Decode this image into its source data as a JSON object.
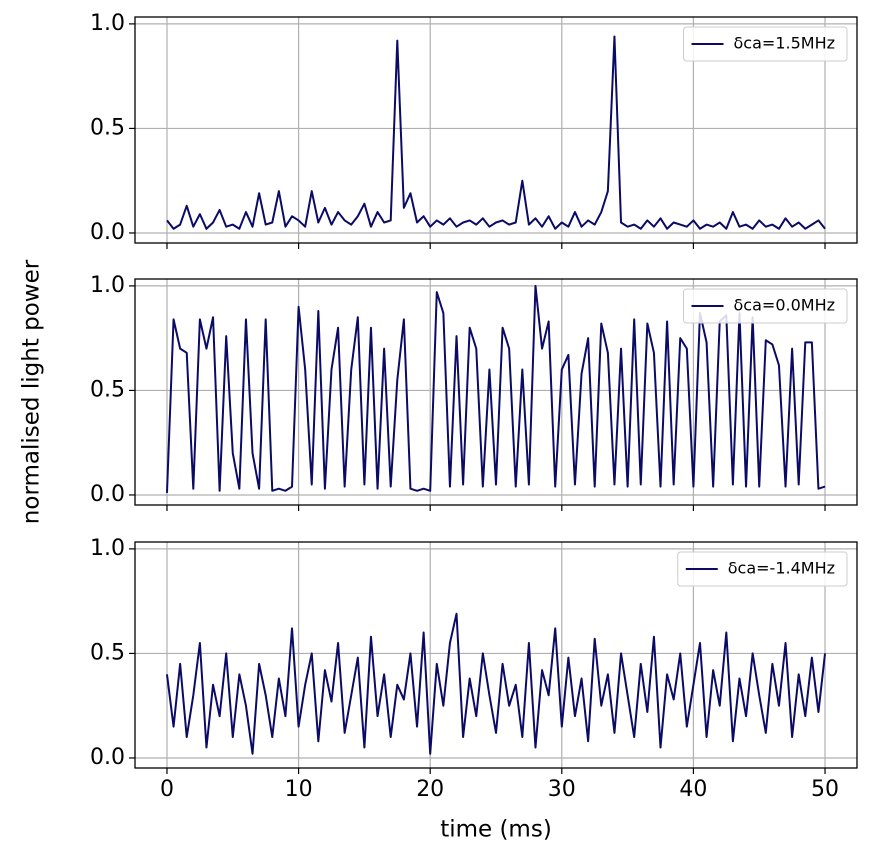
{
  "chart_data": [
    {
      "type": "line",
      "legend": "upper right",
      "grid": true,
      "x": [
        0,
        0.5,
        1,
        1.5,
        2,
        2.5,
        3,
        3.5,
        4,
        4.5,
        5,
        5.5,
        6,
        6.5,
        7,
        7.5,
        8,
        8.5,
        9,
        9.5,
        10,
        10.5,
        11,
        11.5,
        12,
        12.5,
        13,
        13.5,
        14,
        14.5,
        15,
        15.5,
        16,
        16.5,
        17,
        17.5,
        18,
        18.5,
        19,
        19.5,
        20,
        20.5,
        21,
        21.5,
        22,
        22.5,
        23,
        23.5,
        24,
        24.5,
        25,
        25.5,
        26,
        26.5,
        27,
        27.5,
        28,
        28.5,
        29,
        29.5,
        30,
        30.5,
        31,
        31.5,
        32,
        32.5,
        33,
        33.5,
        34,
        34.5,
        35,
        35.5,
        36,
        36.5,
        37,
        37.5,
        38,
        38.5,
        39,
        39.5,
        40,
        40.5,
        41,
        41.5,
        42,
        42.5,
        43,
        43.5,
        44,
        44.5,
        45,
        45.5,
        46,
        46.5,
        47,
        47.5,
        48,
        48.5,
        49,
        49.5,
        50
      ],
      "series": [
        {
          "name": "δca=1.5MHz",
          "color": "#0b0b66",
          "values": [
            0.06,
            0.02,
            0.04,
            0.13,
            0.03,
            0.09,
            0.02,
            0.05,
            0.11,
            0.03,
            0.04,
            0.02,
            0.1,
            0.03,
            0.19,
            0.04,
            0.05,
            0.2,
            0.03,
            0.08,
            0.06,
            0.03,
            0.2,
            0.05,
            0.12,
            0.04,
            0.1,
            0.06,
            0.04,
            0.08,
            0.14,
            0.03,
            0.1,
            0.05,
            0.06,
            0.92,
            0.12,
            0.19,
            0.05,
            0.08,
            0.03,
            0.06,
            0.04,
            0.07,
            0.03,
            0.05,
            0.06,
            0.04,
            0.07,
            0.03,
            0.05,
            0.06,
            0.04,
            0.05,
            0.25,
            0.04,
            0.07,
            0.03,
            0.08,
            0.02,
            0.05,
            0.03,
            0.1,
            0.03,
            0.06,
            0.04,
            0.1,
            0.2,
            0.94,
            0.05,
            0.03,
            0.04,
            0.02,
            0.06,
            0.03,
            0.07,
            0.02,
            0.05,
            0.04,
            0.03,
            0.06,
            0.02,
            0.04,
            0.03,
            0.05,
            0.02,
            0.1,
            0.03,
            0.04,
            0.02,
            0.06,
            0.03,
            0.04,
            0.02,
            0.07,
            0.03,
            0.05,
            0.02,
            0.04,
            0.06,
            0.02
          ]
        }
      ],
      "xlim": [
        -2.43,
        52.43
      ],
      "xticks": [
        0,
        10,
        20,
        30,
        40,
        50
      ],
      "ylim": [
        -0.048,
        1.033
      ],
      "yticks": [
        {
          "value": 0,
          "label": "0.0"
        },
        0.5,
        {
          "value": 1,
          "label": "1.0"
        }
      ]
    },
    {
      "type": "line",
      "legend": "upper right",
      "grid": true,
      "ylabel": "normalised light power",
      "x": [
        0,
        0.5,
        1,
        1.5,
        2,
        2.5,
        3,
        3.5,
        4,
        4.5,
        5,
        5.5,
        6,
        6.5,
        7,
        7.5,
        8,
        8.5,
        9,
        9.5,
        10,
        10.5,
        11,
        11.5,
        12,
        12.5,
        13,
        13.5,
        14,
        14.5,
        15,
        15.5,
        16,
        16.5,
        17,
        17.5,
        18,
        18.5,
        19,
        19.5,
        20,
        20.5,
        21,
        21.5,
        22,
        22.5,
        23,
        23.5,
        24,
        24.5,
        25,
        25.5,
        26,
        26.5,
        27,
        27.5,
        28,
        28.5,
        29,
        29.5,
        30,
        30.5,
        31,
        31.5,
        32,
        32.5,
        33,
        33.5,
        34,
        34.5,
        35,
        35.5,
        36,
        36.5,
        37,
        37.5,
        38,
        38.5,
        39,
        39.5,
        40,
        40.5,
        41,
        41.5,
        42,
        42.5,
        43,
        43.5,
        44,
        44.5,
        45,
        45.5,
        46,
        46.5,
        47,
        47.5,
        48,
        48.5,
        49,
        49.5,
        50
      ],
      "series": [
        {
          "name": "δca=0.0MHz",
          "color": "#0b0b66",
          "values": [
            0.01,
            0.84,
            0.7,
            0.68,
            0.03,
            0.84,
            0.7,
            0.85,
            0.02,
            0.76,
            0.2,
            0.03,
            0.84,
            0.2,
            0.03,
            0.84,
            0.02,
            0.03,
            0.02,
            0.04,
            0.9,
            0.6,
            0.05,
            0.88,
            0.03,
            0.6,
            0.8,
            0.04,
            0.6,
            0.85,
            0.05,
            0.8,
            0.03,
            0.7,
            0.04,
            0.55,
            0.84,
            0.03,
            0.02,
            0.03,
            0.02,
            0.97,
            0.87,
            0.04,
            0.76,
            0.05,
            0.8,
            0.7,
            0.04,
            0.6,
            0.05,
            0.8,
            0.7,
            0.04,
            0.6,
            0.05,
            1.0,
            0.7,
            0.83,
            0.04,
            0.6,
            0.67,
            0.05,
            0.58,
            0.75,
            0.04,
            0.82,
            0.68,
            0.05,
            0.7,
            0.04,
            0.84,
            0.05,
            0.82,
            0.68,
            0.04,
            0.83,
            0.05,
            0.75,
            0.7,
            0.04,
            0.87,
            0.73,
            0.04,
            0.83,
            0.86,
            0.05,
            0.87,
            0.04,
            0.85,
            0.04,
            0.74,
            0.72,
            0.62,
            0.04,
            0.7,
            0.05,
            0.73,
            0.73,
            0.03,
            0.04
          ]
        }
      ],
      "xlim": [
        -2.43,
        52.43
      ],
      "xticks": [
        0,
        10,
        20,
        30,
        40,
        50
      ],
      "ylim": [
        -0.048,
        1.033
      ],
      "yticks": [
        {
          "value": 0,
          "label": "0.0"
        },
        0.5,
        {
          "value": 1,
          "label": "1.0"
        }
      ]
    },
    {
      "type": "line",
      "legend": "upper right",
      "grid": true,
      "xlabel": "time (ms)",
      "x": [
        0,
        0.5,
        1,
        1.5,
        2,
        2.5,
        3,
        3.5,
        4,
        4.5,
        5,
        5.5,
        6,
        6.5,
        7,
        7.5,
        8,
        8.5,
        9,
        9.5,
        10,
        10.5,
        11,
        11.5,
        12,
        12.5,
        13,
        13.5,
        14,
        14.5,
        15,
        15.5,
        16,
        16.5,
        17,
        17.5,
        18,
        18.5,
        19,
        19.5,
        20,
        20.5,
        21,
        21.5,
        22,
        22.5,
        23,
        23.5,
        24,
        24.5,
        25,
        25.5,
        26,
        26.5,
        27,
        27.5,
        28,
        28.5,
        29,
        29.5,
        30,
        30.5,
        31,
        31.5,
        32,
        32.5,
        33,
        33.5,
        34,
        34.5,
        35,
        35.5,
        36,
        36.5,
        37,
        37.5,
        38,
        38.5,
        39,
        39.5,
        40,
        40.5,
        41,
        41.5,
        42,
        42.5,
        43,
        43.5,
        44,
        44.5,
        45,
        45.5,
        46,
        46.5,
        47,
        47.5,
        48,
        48.5,
        49,
        49.5,
        50
      ],
      "series": [
        {
          "name": "δca=-1.4MHz",
          "color": "#0b0b66",
          "values": [
            0.4,
            0.15,
            0.45,
            0.1,
            0.3,
            0.55,
            0.05,
            0.35,
            0.2,
            0.5,
            0.1,
            0.4,
            0.25,
            0.02,
            0.45,
            0.3,
            0.1,
            0.38,
            0.2,
            0.62,
            0.15,
            0.35,
            0.5,
            0.08,
            0.42,
            0.27,
            0.55,
            0.12,
            0.3,
            0.48,
            0.05,
            0.58,
            0.2,
            0.4,
            0.1,
            0.35,
            0.28,
            0.5,
            0.15,
            0.6,
            0.02,
            0.45,
            0.25,
            0.55,
            0.69,
            0.1,
            0.38,
            0.2,
            0.5,
            0.3,
            0.12,
            0.45,
            0.25,
            0.35,
            0.1,
            0.55,
            0.05,
            0.42,
            0.3,
            0.62,
            0.15,
            0.48,
            0.2,
            0.38,
            0.08,
            0.57,
            0.25,
            0.4,
            0.12,
            0.5,
            0.3,
            0.1,
            0.45,
            0.22,
            0.58,
            0.05,
            0.4,
            0.28,
            0.5,
            0.15,
            0.35,
            0.55,
            0.1,
            0.42,
            0.25,
            0.6,
            0.08,
            0.38,
            0.2,
            0.5,
            0.3,
            0.12,
            0.45,
            0.25,
            0.55,
            0.1,
            0.4,
            0.2,
            0.48,
            0.22,
            0.5
          ]
        }
      ],
      "xlim": [
        -2.43,
        52.43
      ],
      "xticks": [
        0,
        10,
        20,
        30,
        40,
        50
      ],
      "ylim": [
        -0.048,
        1.033
      ],
      "yticks": [
        {
          "value": 0,
          "label": "0.0"
        },
        0.5,
        {
          "value": 1,
          "label": "1.0"
        }
      ]
    }
  ]
}
